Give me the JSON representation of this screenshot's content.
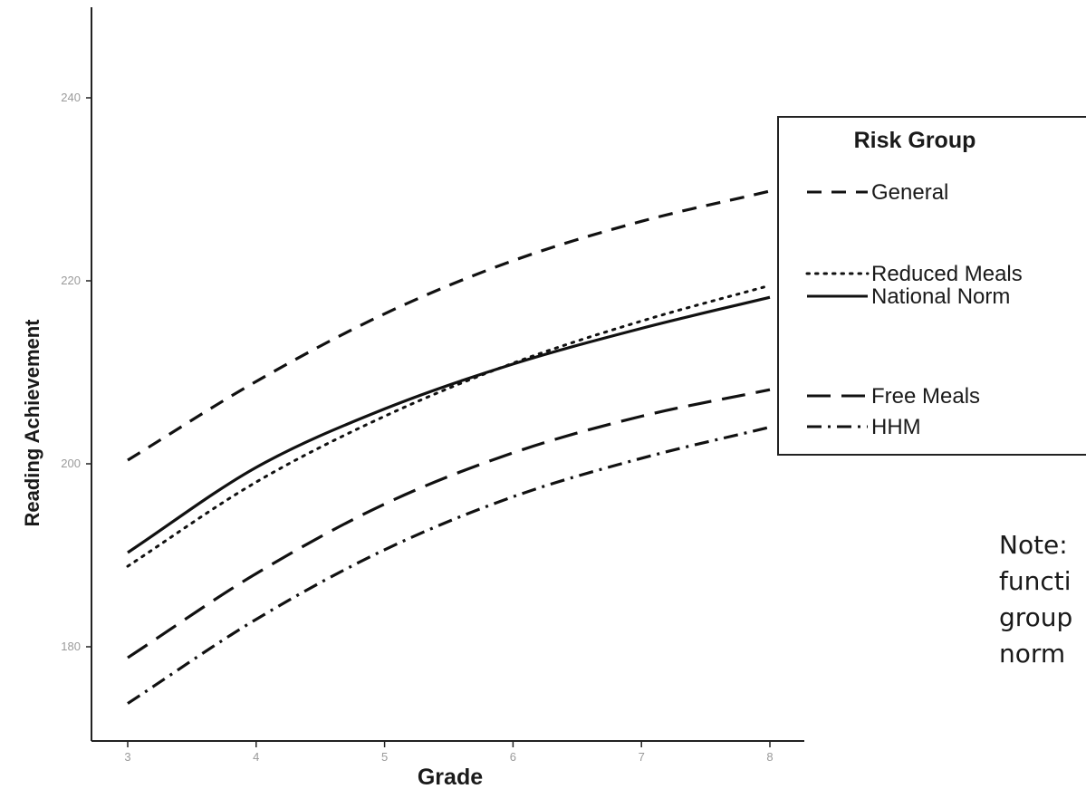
{
  "chart_data": {
    "type": "line",
    "xlabel": "Grade",
    "ylabel": "Reading Achievement",
    "xlim": [
      3,
      8
    ],
    "ylim": [
      170,
      250
    ],
    "xticks": [
      "3",
      "4",
      "5",
      "6",
      "7",
      "8"
    ],
    "yticks": [
      "180",
      "200",
      "220",
      "240"
    ],
    "grid": false,
    "legend": {
      "title": "Risk Group",
      "placement": "right"
    },
    "series": [
      {
        "name": "General",
        "style": "dashed",
        "x": [
          3,
          4,
          5,
          6,
          7,
          8
        ],
        "values": [
          200.4,
          209.0,
          216.4,
          222.2,
          226.5,
          229.8
        ]
      },
      {
        "name": "Reduced Meals",
        "style": "dotted",
        "x": [
          3,
          4,
          5,
          6,
          7,
          8
        ],
        "values": [
          188.8,
          198.0,
          205.2,
          211.0,
          215.6,
          219.5
        ]
      },
      {
        "name": "National Norm",
        "style": "solid",
        "x": [
          3,
          4,
          5,
          6,
          7,
          8
        ],
        "values": [
          190.3,
          199.6,
          206.0,
          210.9,
          214.8,
          218.2
        ]
      },
      {
        "name": "Free Meals",
        "style": "longdash",
        "x": [
          3,
          4,
          5,
          6,
          7,
          8
        ],
        "values": [
          178.8,
          188.0,
          195.6,
          201.2,
          205.2,
          208.1
        ]
      },
      {
        "name": "HHM",
        "style": "dashdot",
        "x": [
          3,
          4,
          5,
          6,
          7,
          8
        ],
        "values": [
          173.8,
          183.0,
          190.6,
          196.4,
          200.6,
          204.0
        ]
      }
    ]
  },
  "note_lines": [
    "Note:",
    "functi",
    "group",
    "norm"
  ]
}
